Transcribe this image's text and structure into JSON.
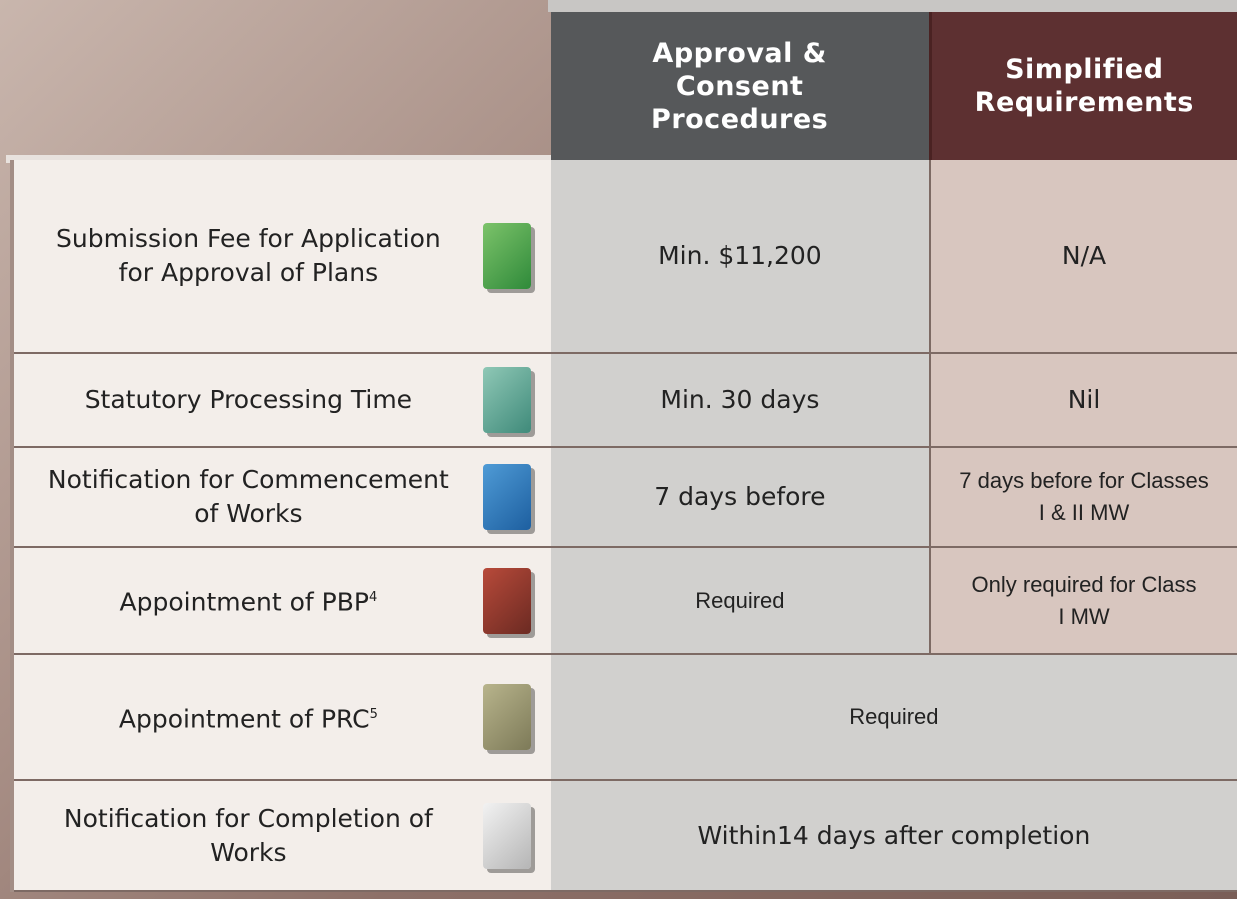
{
  "table": {
    "header": [
      "Approval & Consent Procedures",
      "Simplified Requirements"
    ],
    "rows": [
      {
        "label": "Submission Fee for Application for Approval of Plans",
        "cells": [
          "Min. $11,200",
          "N/A"
        ]
      },
      {
        "label": "Statutory Processing Time",
        "cells": [
          "Min. 30 days",
          "Nil"
        ]
      },
      {
        "label": "Notification for Commencement of Works",
        "cells": [
          "7 days before",
          "7 days before for Classes I & II MW"
        ]
      },
      {
        "label": "Appointment of PBP",
        "note": "4",
        "cells": [
          "Required",
          "Only required for Class I MW"
        ]
      },
      {
        "label": "Appointment of PRC",
        "note": "5",
        "cells": [
          "Required"
        ]
      },
      {
        "label": "Notification for Completion of Works",
        "cells": [
          "Within14 days after completion"
        ]
      }
    ]
  }
}
